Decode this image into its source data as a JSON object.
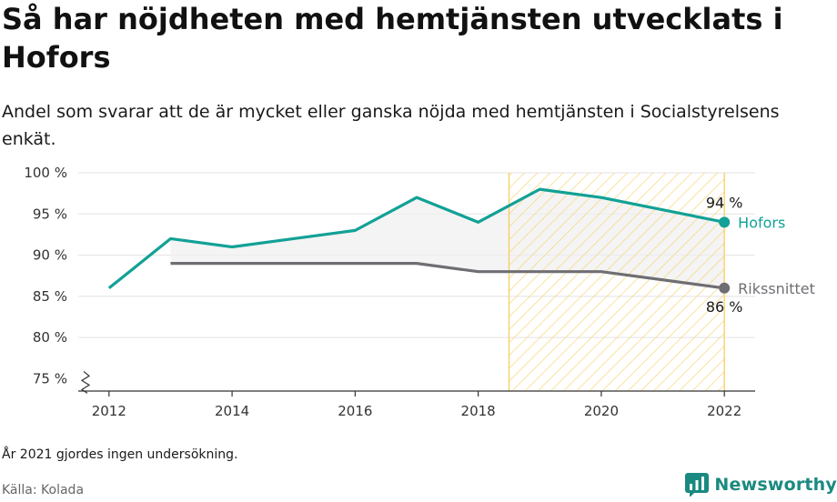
{
  "title": "Så har nöjdheten med hemtjänsten utvecklats i Hofors",
  "subtitle": "Andel som svarar att de är mycket eller ganska nöjda med hemtjänsten i Socialstyrelsens enkät.",
  "note": "År 2021 gjordes ingen undersökning.",
  "source": "Källa: Kolada",
  "brand": {
    "name": "Newsworthy",
    "icon": "newsworthy-logo-icon"
  },
  "colors": {
    "hofors": "#12a196",
    "riks": "#6f6e73",
    "highlight": "#f7cf5e",
    "band": "#efefef"
  },
  "chart_data": {
    "type": "line",
    "x_ticks": [
      "2012",
      "2014",
      "2016",
      "2018",
      "2020",
      "2022"
    ],
    "y_ticks": [
      "75 %",
      "80 %",
      "85 %",
      "90 %",
      "95 %",
      "100 %"
    ],
    "xlim": [
      2011.5,
      2022.5
    ],
    "ylim": [
      73.5,
      100
    ],
    "axis_break": true,
    "highlight_range": [
      2018.5,
      2022
    ],
    "series": [
      {
        "name": "Hofors",
        "x": [
          2012,
          2013,
          2014,
          2015,
          2016,
          2017,
          2018,
          2019,
          2020,
          2022
        ],
        "values": [
          86,
          92,
          91,
          92,
          93,
          97,
          94,
          98,
          97,
          94
        ],
        "end_label": "94 %",
        "color": "#12a196"
      },
      {
        "name": "Rikssnittet",
        "x": [
          2013,
          2014,
          2015,
          2016,
          2017,
          2018,
          2019,
          2020,
          2022
        ],
        "values": [
          89,
          89,
          89,
          89,
          89,
          88,
          88,
          88,
          86
        ],
        "end_label": "86 %",
        "color": "#6f6e73"
      }
    ]
  }
}
